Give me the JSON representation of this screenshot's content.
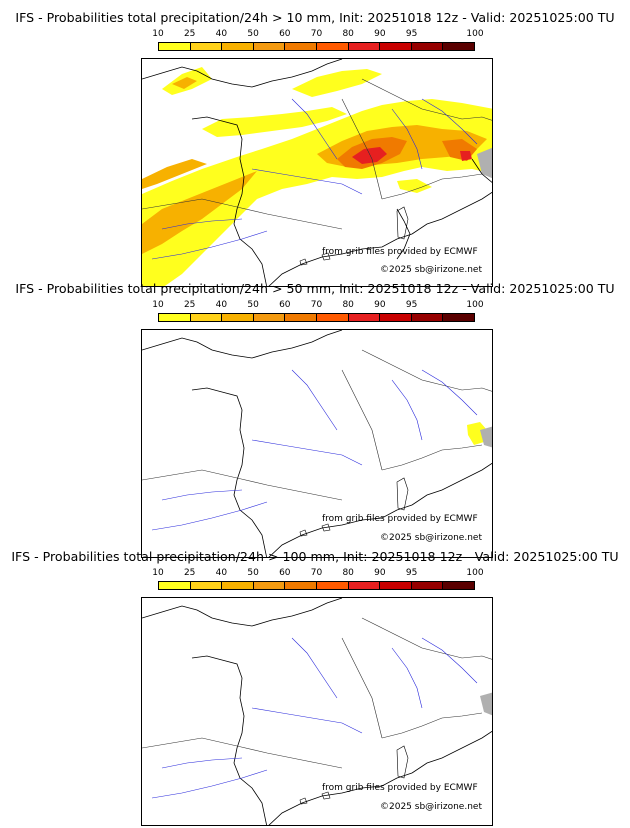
{
  "legend_colors": [
    "#ffff1e",
    "#ffd21a",
    "#f7b100",
    "#f39a10",
    "#f07a00",
    "#ff5a00",
    "#e62020",
    "#c80000",
    "#960000",
    "#5a0000"
  ],
  "panels": [
    {
      "title": "IFS - Probabilities total precipitation/24h > 10 mm, Init: 20251018 12z - Valid: 20251025:00 TU",
      "ticks": [
        "10",
        "25",
        "40",
        "50",
        "60",
        "70",
        "80",
        "90",
        "95",
        "100"
      ],
      "credit_ecmwf": "from grib files provided by ECMWF",
      "credit_site": "©2025 sb@irizone.net"
    },
    {
      "title": "IFS - Probabilities total precipitation/24h > 50 mm, Init: 20251018 12z - Valid: 20251025:00 TU",
      "ticks": [
        "10",
        "25",
        "40",
        "50",
        "60",
        "70",
        "80",
        "90",
        "95",
        "100"
      ],
      "credit_ecmwf": "from grib files provided by ECMWF",
      "credit_site": "©2025 sb@irizone.net"
    },
    {
      "title": "IFS - Probabilities total precipitation/24h > 100 mm, Init: 20251018 12z - Valid: 20251025:00 TU",
      "ticks": [
        "10",
        "25",
        "40",
        "50",
        "60",
        "70",
        "80",
        "90",
        "95",
        "100"
      ],
      "credit_ecmwf": "from grib files provided by ECMWF",
      "credit_site": "©2025 sb@irizone.net"
    }
  ]
}
